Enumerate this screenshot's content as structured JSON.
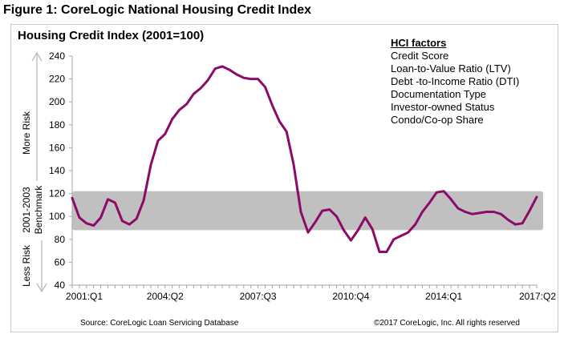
{
  "figure_title": "Figure 1: CoreLogic National Housing Credit Index",
  "factors": {
    "header": "HCI factors",
    "items": [
      "Credit Score",
      "Loan-to-Value Ratio (LTV)",
      "Debt -to-Income Ratio (DTI)",
      "Documentation Type",
      "Investor-owned  Status",
      "Condo/Co-op Share"
    ]
  },
  "side_labels": {
    "more_risk": "More Risk",
    "benchmark_line1": "2001-2003",
    "benchmark_line2": "Benchmark",
    "less_risk": "Less Risk"
  },
  "footer": {
    "source": "Source: CoreLogic Loan Servicing Database",
    "copyright": "©2017 CoreLogic, Inc. All rights reserved"
  },
  "colors": {
    "line": "#8b0a6a",
    "band": "#c0c0c0",
    "axis": "#a6a6a6"
  },
  "chart_data": {
    "type": "line",
    "title": "Housing Credit Index (2001=100)",
    "xlabel": "",
    "ylabel": "",
    "ylim": [
      40,
      240
    ],
    "yticks": [
      40,
      60,
      80,
      100,
      120,
      140,
      160,
      180,
      200,
      220,
      240
    ],
    "x_tick_labels": [
      {
        "index": 0,
        "label": "2001:Q1"
      },
      {
        "index": 13,
        "label": "2004:Q2"
      },
      {
        "index": 26,
        "label": "2007:Q3"
      },
      {
        "index": 39,
        "label": "2010:Q4"
      },
      {
        "index": 52,
        "label": "2014:Q1"
      },
      {
        "index": 65,
        "label": "2017:Q2"
      }
    ],
    "x_start": "2001:Q1",
    "x_end": "2017:Q2",
    "grid": false,
    "benchmark_band": {
      "label": "2001-2003 Benchmark",
      "low": 88,
      "high": 122
    },
    "series": [
      {
        "name": "Housing Credit Index",
        "values": [
          116,
          99,
          94,
          92,
          99,
          115,
          112,
          96,
          93,
          98,
          114,
          145,
          166,
          172,
          185,
          193,
          198,
          207,
          212,
          219,
          229,
          231,
          228,
          224,
          221,
          220,
          220,
          213,
          197,
          183,
          174,
          145,
          104,
          86,
          95,
          105,
          106,
          100,
          88,
          79,
          88,
          99,
          89,
          69,
          69,
          80,
          83,
          86,
          93,
          104,
          112,
          121,
          122,
          115,
          107,
          104,
          102,
          103,
          104,
          104,
          102,
          97,
          93,
          94,
          105,
          117
        ]
      }
    ]
  }
}
